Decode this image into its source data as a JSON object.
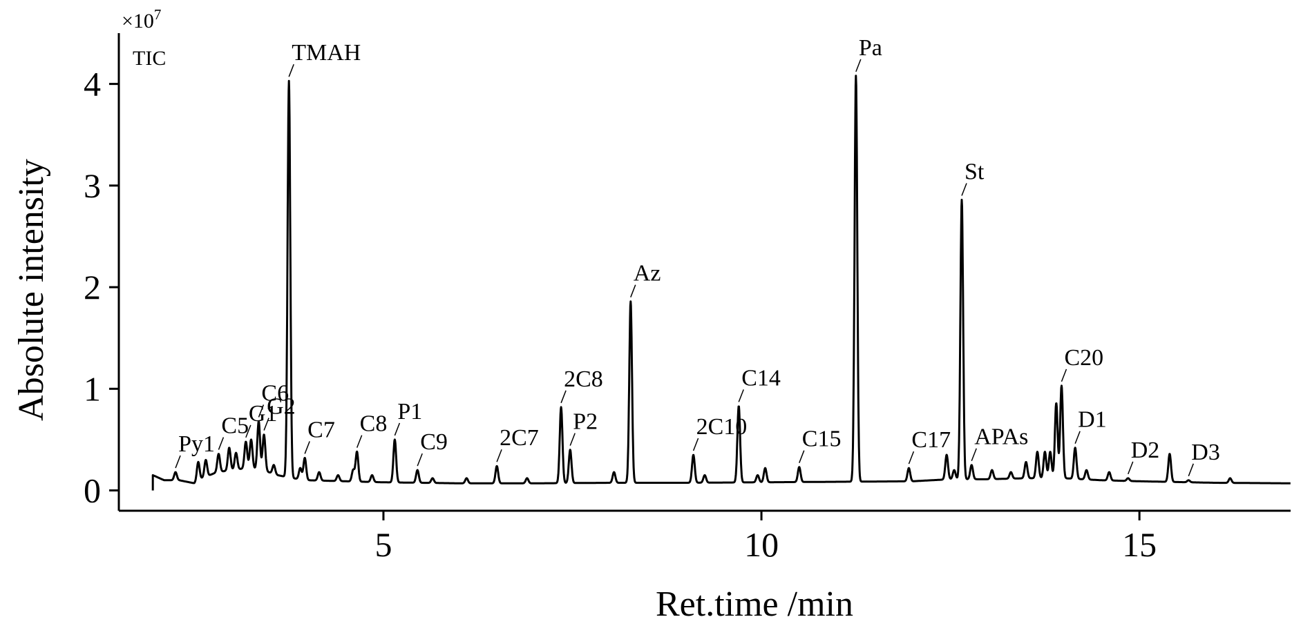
{
  "chart_data": {
    "type": "line",
    "title": "",
    "trace_label": "TIC",
    "y_multiplier": "×10",
    "y_multiplier_exp": "7",
    "xlabel": "Ret.time /min",
    "ylabel": "Absolute intensity",
    "xlim": [
      1.5,
      17.0
    ],
    "ylim": [
      -0.2,
      4.5
    ],
    "x_ticks": [
      5,
      10,
      15
    ],
    "x_tick_labels": [
      "5",
      "10",
      "15"
    ],
    "y_ticks": [
      0,
      1,
      2,
      3,
      4
    ],
    "y_tick_labels": [
      "0",
      "1",
      "2",
      "3",
      "4"
    ],
    "grid": false,
    "line_color": "#000000",
    "baseline": [
      [
        1.95,
        0.15
      ],
      [
        2.1,
        0.1
      ],
      [
        2.3,
        0.1
      ],
      [
        2.5,
        0.07
      ],
      [
        2.6,
        0.12
      ],
      [
        2.8,
        0.18
      ],
      [
        3.0,
        0.2
      ],
      [
        3.2,
        0.22
      ],
      [
        3.4,
        0.2
      ],
      [
        3.6,
        0.15
      ],
      [
        3.8,
        0.12
      ],
      [
        4.0,
        0.1
      ],
      [
        4.5,
        0.09
      ],
      [
        5.0,
        0.08
      ],
      [
        6.0,
        0.07
      ],
      [
        7.0,
        0.07
      ],
      [
        8.0,
        0.075
      ],
      [
        9.0,
        0.075
      ],
      [
        10.0,
        0.08
      ],
      [
        11.0,
        0.085
      ],
      [
        12.0,
        0.09
      ],
      [
        12.5,
        0.11
      ],
      [
        13.0,
        0.11
      ],
      [
        13.5,
        0.12
      ],
      [
        14.0,
        0.12
      ],
      [
        14.5,
        0.1
      ],
      [
        15.0,
        0.09
      ],
      [
        16.0,
        0.075
      ],
      [
        17.0,
        0.07
      ]
    ],
    "peaks": [
      {
        "x": 2.25,
        "y": 0.18,
        "label": "Py1"
      },
      {
        "x": 2.55,
        "y": 0.28
      },
      {
        "x": 2.65,
        "y": 0.3
      },
      {
        "x": 2.82,
        "y": 0.36,
        "label": "C5"
      },
      {
        "x": 2.96,
        "y": 0.42
      },
      {
        "x": 3.05,
        "y": 0.37
      },
      {
        "x": 3.18,
        "y": 0.48,
        "label": "G1"
      },
      {
        "x": 3.25,
        "y": 0.5
      },
      {
        "x": 3.35,
        "y": 0.68,
        "label": "C6"
      },
      {
        "x": 3.42,
        "y": 0.55,
        "label": "G2"
      },
      {
        "x": 3.55,
        "y": 0.25
      },
      {
        "x": 3.75,
        "y": 4.03,
        "label": "TMAH"
      },
      {
        "x": 3.9,
        "y": 0.22
      },
      {
        "x": 3.96,
        "y": 0.32,
        "label": "C7"
      },
      {
        "x": 4.15,
        "y": 0.18
      },
      {
        "x": 4.4,
        "y": 0.15
      },
      {
        "x": 4.6,
        "y": 0.2
      },
      {
        "x": 4.65,
        "y": 0.38,
        "label": "C8"
      },
      {
        "x": 4.85,
        "y": 0.15
      },
      {
        "x": 5.15,
        "y": 0.5,
        "label": "P1"
      },
      {
        "x": 5.45,
        "y": 0.2,
        "label": "C9"
      },
      {
        "x": 5.65,
        "y": 0.12
      },
      {
        "x": 6.1,
        "y": 0.12
      },
      {
        "x": 6.5,
        "y": 0.24,
        "label": "2C7"
      },
      {
        "x": 6.9,
        "y": 0.12
      },
      {
        "x": 7.35,
        "y": 0.82,
        "label": "2C8"
      },
      {
        "x": 7.47,
        "y": 0.4,
        "label": "P2"
      },
      {
        "x": 8.05,
        "y": 0.18
      },
      {
        "x": 8.27,
        "y": 1.86,
        "label": "Az"
      },
      {
        "x": 9.1,
        "y": 0.35,
        "label": "2C10"
      },
      {
        "x": 9.25,
        "y": 0.15
      },
      {
        "x": 9.7,
        "y": 0.83,
        "label": "C14"
      },
      {
        "x": 9.95,
        "y": 0.15
      },
      {
        "x": 10.05,
        "y": 0.22
      },
      {
        "x": 10.5,
        "y": 0.23,
        "label": "C15"
      },
      {
        "x": 11.25,
        "y": 4.08,
        "label": "Pa"
      },
      {
        "x": 11.95,
        "y": 0.22,
        "label": "C17"
      },
      {
        "x": 12.45,
        "y": 0.35
      },
      {
        "x": 12.55,
        "y": 0.2
      },
      {
        "x": 12.65,
        "y": 2.86,
        "label": "St"
      },
      {
        "x": 12.78,
        "y": 0.25,
        "label": "APAs"
      },
      {
        "x": 13.05,
        "y": 0.2
      },
      {
        "x": 13.3,
        "y": 0.18
      },
      {
        "x": 13.5,
        "y": 0.28
      },
      {
        "x": 13.65,
        "y": 0.38
      },
      {
        "x": 13.75,
        "y": 0.38
      },
      {
        "x": 13.82,
        "y": 0.38
      },
      {
        "x": 13.9,
        "y": 0.86
      },
      {
        "x": 13.97,
        "y": 1.03,
        "label": "C20"
      },
      {
        "x": 14.15,
        "y": 0.42,
        "label": "D1"
      },
      {
        "x": 14.3,
        "y": 0.2
      },
      {
        "x": 14.6,
        "y": 0.18
      },
      {
        "x": 14.85,
        "y": 0.12,
        "label": "D2"
      },
      {
        "x": 15.4,
        "y": 0.36
      },
      {
        "x": 15.65,
        "y": 0.1,
        "label": "D3"
      },
      {
        "x": 16.2,
        "y": 0.12
      }
    ]
  }
}
